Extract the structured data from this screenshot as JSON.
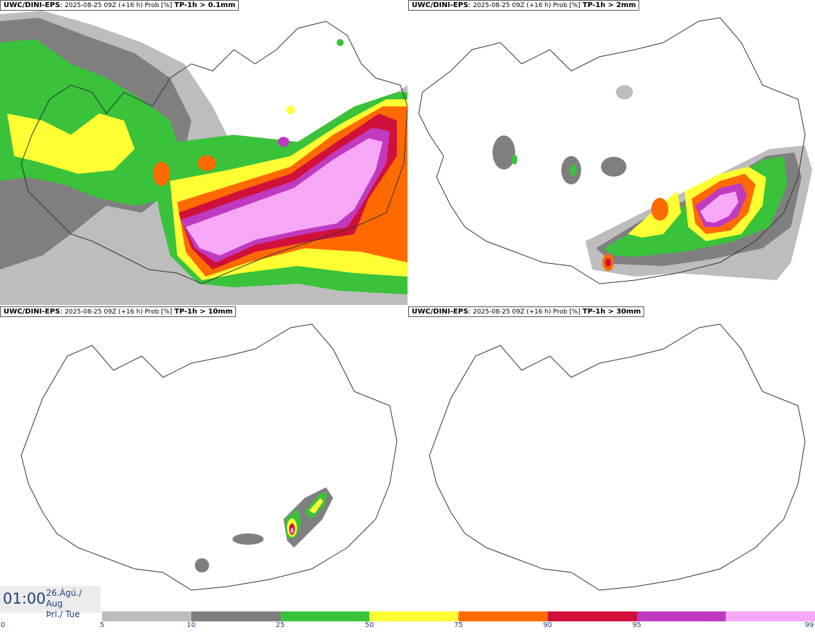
{
  "panels": [
    {
      "model": "UWC/DINI-EPS",
      "run": "2025-08-25 09Z (+16 h) Prob [%]",
      "threshold": "TP-1h > 0.1mm"
    },
    {
      "model": "UWC/DINI-EPS",
      "run": "2025-08-25 09Z (+16 h) Prob [%]",
      "threshold": "TP-1h > 2mm"
    },
    {
      "model": "UWC/DINI-EPS",
      "run": "2025-08-25 09Z (+16 h) Prob [%]",
      "threshold": "TP-1h > 10mm"
    },
    {
      "model": "UWC/DINI-EPS",
      "run": "2025-08-25 09Z (+16 h) Prob [%]",
      "threshold": "TP-1h > 30mm"
    }
  ],
  "clock": {
    "time": "01:00",
    "date_line1": "26.Ágú./ Aug",
    "date_line2": "Þri./ Tue"
  },
  "scale": {
    "labels": [
      "0",
      "5",
      "10",
      "25",
      "50",
      "75",
      "90",
      "95",
      "99"
    ],
    "colors": [
      "#ffffff",
      "#bdbdbd",
      "#7f7f7f",
      "#39c23a",
      "#ffff33",
      "#ff6a00",
      "#d0103a",
      "#c03ac0",
      "#f6a8f6"
    ]
  }
}
